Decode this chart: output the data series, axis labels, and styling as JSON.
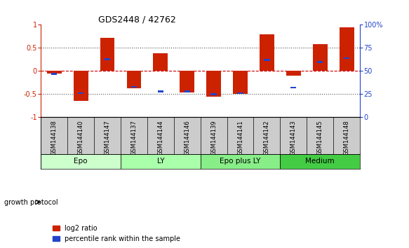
{
  "title": "GDS2448 / 42762",
  "samples": [
    "GSM144138",
    "GSM144140",
    "GSM144147",
    "GSM144137",
    "GSM144144",
    "GSM144146",
    "GSM144139",
    "GSM144141",
    "GSM144142",
    "GSM144143",
    "GSM144145",
    "GSM144148"
  ],
  "log2_ratio": [
    -0.05,
    -0.65,
    0.72,
    -0.38,
    0.39,
    -0.47,
    -0.55,
    -0.5,
    0.8,
    -0.1,
    0.58,
    0.95
  ],
  "percentile_rank": [
    47,
    26,
    63,
    33,
    28,
    28,
    25,
    26,
    62,
    32,
    60,
    64
  ],
  "groups": [
    {
      "label": "Epo",
      "start": 0,
      "end": 3,
      "color": "#ccffcc"
    },
    {
      "label": "LY",
      "start": 3,
      "end": 6,
      "color": "#aaffaa"
    },
    {
      "label": "Epo plus LY",
      "start": 6,
      "end": 9,
      "color": "#88ee88"
    },
    {
      "label": "Medium",
      "start": 9,
      "end": 12,
      "color": "#44cc44"
    }
  ],
  "bar_color_red": "#cc2200",
  "bar_color_blue": "#2244cc",
  "ylim_left": [
    -1,
    1
  ],
  "ylim_right": [
    0,
    100
  ],
  "yticks_left": [
    -1,
    -0.5,
    0,
    0.5,
    1
  ],
  "yticks_right": [
    0,
    25,
    50,
    75,
    100
  ],
  "ytick_labels_right": [
    "0",
    "25",
    "50",
    "75",
    "100%"
  ],
  "hline_zero_color": "#cc0000",
  "hline_dotted_color": "#555555",
  "growth_protocol_label": "growth protocol",
  "legend_log2": "log2 ratio",
  "legend_pct": "percentile rank within the sample",
  "background_color": "#ffffff",
  "bar_width": 0.55,
  "blue_bar_width": 0.22,
  "blue_bar_height": 0.04
}
